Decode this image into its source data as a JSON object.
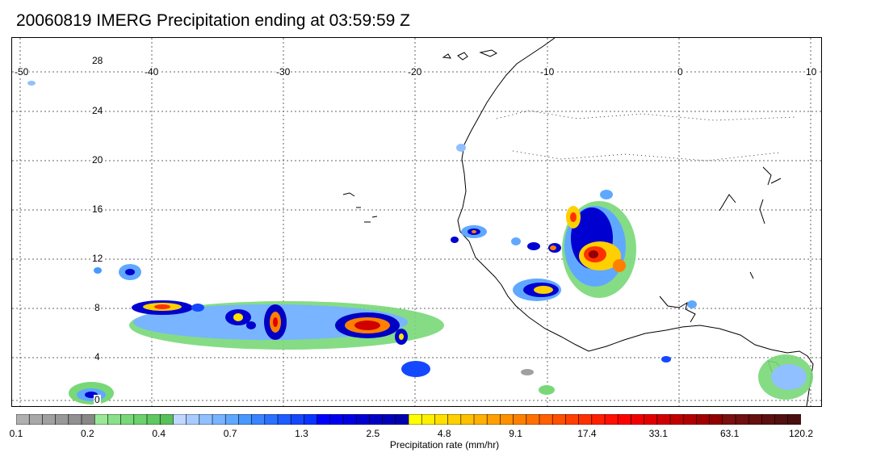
{
  "title": "20060819 IMERG Precipitation ending at 03:59:59 Z",
  "map": {
    "lon_labels": [
      "-50",
      "-40",
      "-30",
      "-20",
      "-10",
      "0",
      "10"
    ],
    "lat_labels": [
      "28",
      "24",
      "20",
      "16",
      "12",
      "8",
      "4",
      "0"
    ],
    "gridlines": "dotted",
    "coastline": "West Africa"
  },
  "colorbar": {
    "title": "Precipitation rate (mm/hr)",
    "tick_labels": [
      "0.1",
      "0.2",
      "0.4",
      "0.7",
      "1.3",
      "2.5",
      "4.8",
      "9.1",
      "17.4",
      "33.1",
      "63.1",
      "120.2"
    ],
    "colors": [
      "#b0b0b0",
      "#a8a8a8",
      "#a0a0a0",
      "#989898",
      "#909090",
      "#888888",
      "#98e898",
      "#88e088",
      "#78d878",
      "#6cd06c",
      "#60c860",
      "#58c058",
      "#c0d8ff",
      "#a8ccff",
      "#90c0ff",
      "#78b4ff",
      "#60a8ff",
      "#4898ff",
      "#3a84ff",
      "#2c70ff",
      "#1f5cff",
      "#1448ff",
      "#0a34ff",
      "#0000ff",
      "#0000f0",
      "#0000e0",
      "#0000d0",
      "#0000c4",
      "#0000b8",
      "#0000ac",
      "#ffff00",
      "#fff000",
      "#ffe000",
      "#ffd000",
      "#ffc000",
      "#ffb000",
      "#ffa000",
      "#ff9000",
      "#ff8000",
      "#ff7000",
      "#ff6000",
      "#ff5000",
      "#ff4000",
      "#ff3000",
      "#ff2000",
      "#ff1000",
      "#ff0000",
      "#f00000",
      "#e00000",
      "#d00000",
      "#c00000",
      "#b00000",
      "#a00000",
      "#900000",
      "#7a1010",
      "#701010",
      "#661010",
      "#5c1010",
      "#521010",
      "#481010"
    ]
  }
}
